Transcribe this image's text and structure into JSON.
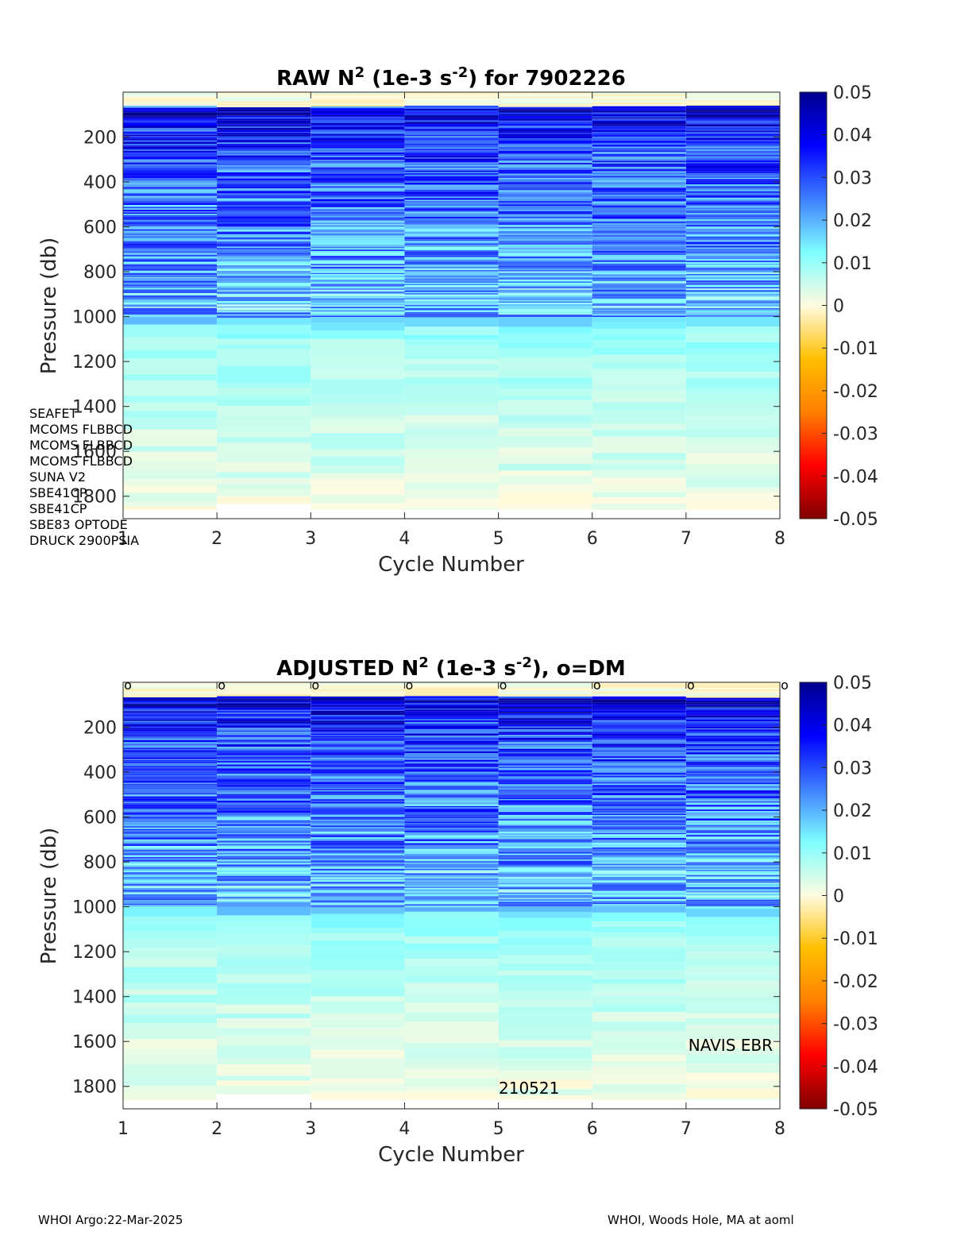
{
  "panels": [
    {
      "id": "raw",
      "title": "RAW N2 (1e-3 s-2) for 7902226",
      "title_parts": {
        "pre": "RAW N",
        "sup1": "2",
        "mid": " (1e-3 s",
        "sup2": "-2",
        "post": ") for 7902226"
      },
      "xlabel": "Cycle Number",
      "ylabel": "Pressure (db)",
      "x_ticks": [
        "1",
        "2",
        "3",
        "4",
        "5",
        "6",
        "7",
        "8"
      ],
      "y_ticks": [
        "200",
        "400",
        "600",
        "800",
        "1000",
        "1200",
        "1400",
        "1600",
        "1800"
      ],
      "colorbar_ticks": [
        "0.05",
        "0.04",
        "0.03",
        "0.02",
        "0.01",
        "0",
        "-0.01",
        "-0.02",
        "-0.03",
        "-0.04",
        "-0.05"
      ],
      "sensors": [
        "SEAFET",
        "MCOMS FLBBCD",
        "MCOMS FLBBCD",
        "MCOMS FLBBCD",
        "SUNA V2",
        "SBE41CP",
        "SBE41CP",
        "SBE83 OPTODE",
        "DRUCK 2900PSIA"
      ],
      "dm_markers": [],
      "annotations": []
    },
    {
      "id": "adjusted",
      "title": "ADJUSTED N2 (1e-3 s-2), o=DM",
      "title_parts": {
        "pre": "ADJUSTED N",
        "sup1": "2",
        "mid": " (1e-3 s",
        "sup2": "-2",
        "post": "), o=DM"
      },
      "xlabel": "Cycle Number",
      "ylabel": "Pressure (db)",
      "x_ticks": [
        "1",
        "2",
        "3",
        "4",
        "5",
        "6",
        "7",
        "8"
      ],
      "y_ticks": [
        "200",
        "400",
        "600",
        "800",
        "1000",
        "1200",
        "1400",
        "1600",
        "1800"
      ],
      "colorbar_ticks": [
        "0.05",
        "0.04",
        "0.03",
        "0.02",
        "0.01",
        "0",
        "-0.01",
        "-0.02",
        "-0.03",
        "-0.04",
        "-0.05"
      ],
      "sensors": [],
      "dm_markers": [
        "o",
        "o",
        "o",
        "o",
        "o",
        "o",
        "o",
        "o"
      ],
      "annotations": [
        {
          "text": "NAVIS EBR",
          "at": "right"
        },
        {
          "text": "210521",
          "at": "bottom"
        }
      ]
    }
  ],
  "footer": {
    "left": "WHOI Argo:22-Mar-2025",
    "right": "WHOI, Woods Hole, MA at aoml"
  },
  "chart_data": [
    {
      "type": "heatmap",
      "title": "RAW N2 (1e-3 s-2) for 7902226",
      "xlabel": "Cycle Number",
      "ylabel": "Pressure (db)",
      "x": [
        1,
        2,
        3,
        4,
        5,
        6,
        7
      ],
      "xlim": [
        1,
        8
      ],
      "ylim": [
        1900,
        0
      ],
      "clim": [
        -0.05,
        0.05
      ],
      "colormap": "jet",
      "y_reversed": true,
      "pressure_profile": {
        "p": [
          25,
          80,
          150,
          250,
          350,
          450,
          550,
          650,
          750,
          850,
          950,
          1000,
          1050,
          1125,
          1225,
          1325,
          1425,
          1525,
          1625,
          1725,
          1800,
          1860
        ],
        "n2_typical": [
          -0.002,
          0.042,
          0.035,
          0.03,
          0.028,
          0.026,
          0.025,
          0.023,
          0.021,
          0.019,
          0.016,
          0.02,
          0.011,
          0.009,
          0.008,
          0.007,
          0.006,
          0.005,
          0.004,
          0.003,
          0.002,
          0.001
        ]
      },
      "max_pressure_by_cycle": [
        1860,
        1835,
        1860,
        1860,
        1860,
        1860,
        1860
      ]
    },
    {
      "type": "heatmap",
      "title": "ADJUSTED N2 (1e-3 s-2), o=DM",
      "xlabel": "Cycle Number",
      "ylabel": "Pressure (db)",
      "x": [
        1,
        2,
        3,
        4,
        5,
        6,
        7
      ],
      "xlim": [
        1,
        8
      ],
      "ylim": [
        1900,
        0
      ],
      "clim": [
        -0.05,
        0.05
      ],
      "colormap": "jet",
      "y_reversed": true,
      "dm_cycles": [
        1,
        2,
        3,
        4,
        5,
        6,
        7,
        8
      ],
      "pressure_profile": {
        "p": [
          25,
          80,
          150,
          250,
          350,
          450,
          550,
          650,
          750,
          850,
          950,
          1000,
          1050,
          1125,
          1225,
          1325,
          1425,
          1525,
          1625,
          1725,
          1800,
          1860
        ],
        "n2_typical": [
          -0.002,
          0.042,
          0.035,
          0.03,
          0.028,
          0.026,
          0.025,
          0.023,
          0.021,
          0.019,
          0.016,
          0.02,
          0.011,
          0.009,
          0.008,
          0.007,
          0.006,
          0.005,
          0.004,
          0.003,
          0.002,
          0.001
        ]
      },
      "max_pressure_by_cycle": [
        1860,
        1835,
        1860,
        1860,
        1860,
        1860,
        1860
      ]
    }
  ]
}
